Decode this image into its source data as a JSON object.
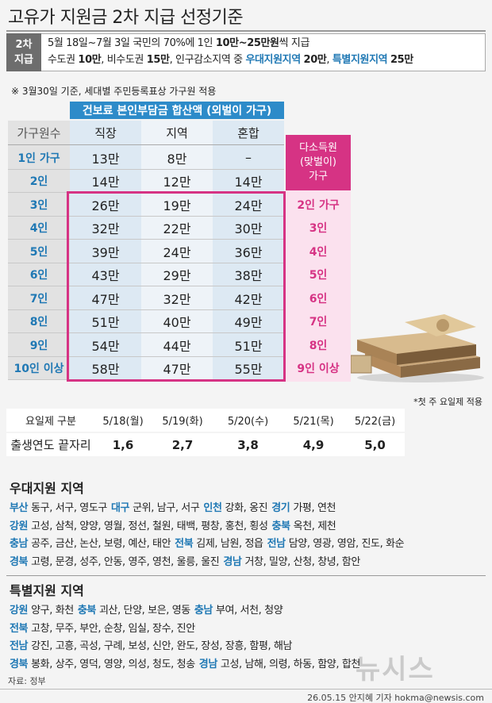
{
  "title": "고유가 지원금 2차 지급 선정기준",
  "summary": {
    "label": [
      "2차",
      "지급"
    ],
    "lines": [
      [
        "5월 18일~7월 3일 국민의 70%에 1인 ",
        {
          "text": "10만~25만원",
          "emphasis": "bold"
        },
        "씩 지급"
      ],
      [
        "수도권 ",
        {
          "text": "10만",
          "emphasis": "bold"
        },
        ", 비수도권 ",
        {
          "text": "15만",
          "emphasis": "bold"
        },
        ", 인구감소지역 중 ",
        {
          "text": "우대지원지역",
          "emphasis": "blue"
        },
        " ",
        {
          "text": "20만",
          "emphasis": "bold"
        },
        ", ",
        {
          "text": "특별지원지역",
          "emphasis": "blue"
        },
        " ",
        {
          "text": "25만",
          "emphasis": "bold"
        }
      ]
    ]
  },
  "note": "※ 3월30일 기준, 세대별 주민등록표상 가구원 적용",
  "income_table": {
    "title": "건보료 본인부담금 합산액 (외벌이 가구)",
    "columns": [
      "가구원수",
      "직장",
      "지역",
      "혼합"
    ],
    "rows": [
      [
        "1인 가구",
        "13만",
        "8만",
        "–"
      ],
      [
        "2인",
        "14만",
        "12만",
        "14만"
      ],
      [
        "3인",
        "26만",
        "19만",
        "24만"
      ],
      [
        "4인",
        "32만",
        "22만",
        "30만"
      ],
      [
        "5인",
        "39만",
        "24만",
        "36만"
      ],
      [
        "6인",
        "43만",
        "29만",
        "38만"
      ],
      [
        "7인",
        "47만",
        "32만",
        "42만"
      ],
      [
        "8인",
        "51만",
        "40만",
        "49만"
      ],
      [
        "9인",
        "54만",
        "44만",
        "51만"
      ],
      [
        "10인 이상",
        "58만",
        "47만",
        "55만"
      ]
    ],
    "dual_header": [
      "다소득원",
      "(맞벌이)",
      "가구"
    ],
    "dual_rows": [
      "2인 가구",
      "3인",
      "4인",
      "5인",
      "6인",
      "7인",
      "8인",
      "9인 이상"
    ]
  },
  "schedule": {
    "note": "*첫 주 요일제 적용",
    "rows": [
      [
        "요일제 구분",
        "5/18(월)",
        "5/19(화)",
        "5/20(수)",
        "5/21(목)",
        "5/22(금)"
      ],
      [
        "출생연도 끝자리",
        "1,6",
        "2,7",
        "3,8",
        "4,9",
        "5,0"
      ]
    ]
  },
  "regions": [
    {
      "title": "우대지원 지역",
      "lines": [
        [
          {
            "region": "부산",
            "areas": "동구, 서구, 영도구"
          },
          {
            "region": "대구",
            "areas": "군위, 남구, 서구"
          },
          {
            "region": "인천",
            "areas": "강화, 옹진"
          },
          {
            "region": "경기",
            "areas": "가평, 연천"
          }
        ],
        [
          {
            "region": "강원",
            "areas": "고성, 삼척, 양양, 영월, 정선, 철원, 태백, 평창, 홍천, 횡성"
          },
          {
            "region": "충북",
            "areas": "옥천, 제천"
          }
        ],
        [
          {
            "region": "충남",
            "areas": "공주, 금산, 논산, 보령, 예산, 태안"
          },
          {
            "region": "전북",
            "areas": "김제, 남원, 정읍"
          },
          {
            "region": "전남",
            "areas": "담양, 영광, 영암, 진도, 화순"
          }
        ],
        [
          {
            "region": "경북",
            "areas": "고령, 문경, 성주, 안동, 영주, 영천, 울릉, 울진"
          },
          {
            "region": "경남",
            "areas": "거창, 밀양, 산청, 창녕, 함안"
          }
        ]
      ]
    },
    {
      "title": "특별지원 지역",
      "lines": [
        [
          {
            "region": "강원",
            "areas": "양구, 화천"
          },
          {
            "region": "충북",
            "areas": "괴산, 단양, 보은, 영동"
          },
          {
            "region": "충남",
            "areas": "부여, 서천, 청양"
          }
        ],
        [
          {
            "region": "전북",
            "areas": "고창, 무주, 부안, 순창, 임실, 장수, 진안"
          }
        ],
        [
          {
            "region": "전남",
            "areas": "강진, 고흥, 곡성, 구례, 보성, 신안, 완도, 장성, 장흥, 함평, 해남"
          }
        ],
        [
          {
            "region": "경북",
            "areas": "봉화, 상주, 영덕, 영양, 의성, 청도, 청송"
          },
          {
            "region": "경남",
            "areas": "고성, 남해, 의령, 하동, 함양, 합천"
          }
        ]
      ]
    }
  ],
  "footer": {
    "source": "자료: 정부",
    "credit": "26.05.15 안지혜 기자 hokma@newsis.com",
    "watermark": "뉴시스"
  }
}
